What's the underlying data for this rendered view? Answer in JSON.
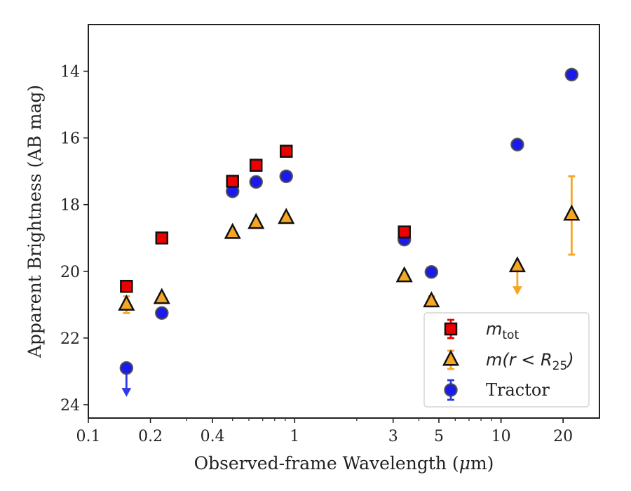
{
  "chart_data": {
    "type": "scatter",
    "title": "",
    "xlabel": "Observed-frame Wavelength (μm)",
    "xlabel_parts": [
      "Observed-frame Wavelength (",
      "μ",
      "m)"
    ],
    "ylabel": "Apparent Brightness (AB mag)",
    "x_scale": "log",
    "xlim": [
      0.1,
      30
    ],
    "ylim": [
      24.4,
      12.6
    ],
    "y_inverted": true,
    "x_ticks": [
      0.1,
      0.2,
      0.4,
      1,
      3,
      5,
      10,
      20
    ],
    "x_tick_labels": [
      "0.1",
      "0.2",
      "0.4",
      "1",
      "3",
      "5",
      "10",
      "20"
    ],
    "y_ticks": [
      14,
      16,
      18,
      20,
      22,
      24
    ],
    "y_tick_labels": [
      "14",
      "16",
      "18",
      "20",
      "22",
      "24"
    ],
    "grid": false,
    "legend_position": "lower-right",
    "series": [
      {
        "name": "m_tot",
        "legend_label": "m",
        "legend_sub": "tot",
        "marker": "square",
        "color": "#ee0000",
        "ecolor": "#ee0000",
        "points": [
          {
            "x": 0.153,
            "y": 20.45,
            "err": 0.1
          },
          {
            "x": 0.227,
            "y": 19.0,
            "err": 0.06
          },
          {
            "x": 0.5,
            "y": 17.3,
            "err": 0.06
          },
          {
            "x": 0.65,
            "y": 16.82,
            "err": 0.06
          },
          {
            "x": 0.91,
            "y": 16.4,
            "err": 0.06
          },
          {
            "x": 3.4,
            "y": 18.82,
            "err": 0.06
          }
        ]
      },
      {
        "name": "m(r < R25)",
        "legend_label": "m(r < R",
        "legend_sub": "25",
        "legend_close": ")",
        "marker": "triangle",
        "color": "#f5a623",
        "ecolor": "#f5a623",
        "points": [
          {
            "x": 0.153,
            "y": 21.0,
            "err": 0.25
          },
          {
            "x": 0.227,
            "y": 20.8,
            "err": 0.08
          },
          {
            "x": 0.5,
            "y": 18.85,
            "err": 0.05
          },
          {
            "x": 0.65,
            "y": 18.55,
            "err": 0.05
          },
          {
            "x": 0.91,
            "y": 18.4,
            "err": 0.05
          },
          {
            "x": 3.4,
            "y": 20.15,
            "err": 0.05
          },
          {
            "x": 4.6,
            "y": 20.9,
            "err": 0.15
          },
          {
            "x": 12.0,
            "y": 19.85,
            "upper_limit": true
          },
          {
            "x": 22.0,
            "y": 18.3,
            "err_low": 1.15,
            "err_high": 1.2
          }
        ]
      },
      {
        "name": "Tractor",
        "legend_label": "Tractor",
        "marker": "circle",
        "color": "#1a1aee",
        "ecolor": "#2c3ae8",
        "points": [
          {
            "x": 0.153,
            "y": 22.9,
            "upper_limit": true
          },
          {
            "x": 0.227,
            "y": 21.25,
            "err": 0.06
          },
          {
            "x": 0.5,
            "y": 17.6,
            "err": 0.05
          },
          {
            "x": 0.65,
            "y": 17.32,
            "err": 0.05
          },
          {
            "x": 0.91,
            "y": 17.15,
            "err": 0.05
          },
          {
            "x": 3.4,
            "y": 19.05,
            "err": 0.05
          },
          {
            "x": 4.6,
            "y": 20.02,
            "err": 0.05
          },
          {
            "x": 12.0,
            "y": 16.2,
            "err": 0.05
          },
          {
            "x": 22.0,
            "y": 14.1,
            "err": 0.05
          }
        ]
      }
    ]
  }
}
